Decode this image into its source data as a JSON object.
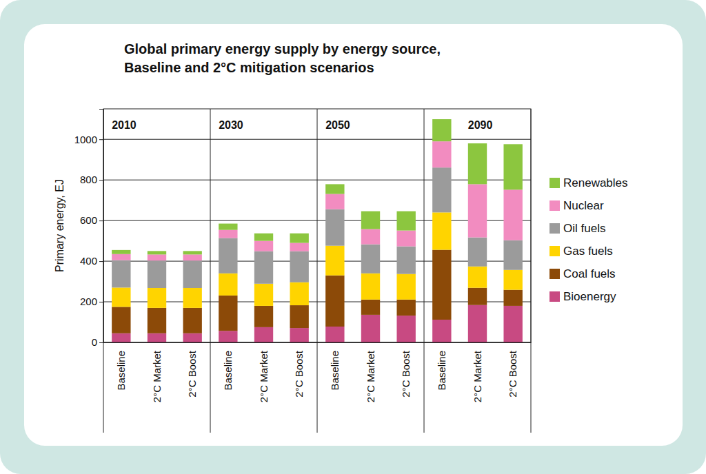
{
  "chart_data": {
    "type": "bar",
    "stacked": true,
    "title": [
      "Global primary energy supply by energy source,",
      "Baseline and 2°C mitigation scenarios"
    ],
    "y_label": "Primary energy, EJ",
    "group_labels": [
      "2010",
      "2030",
      "2050",
      "2090"
    ],
    "categories": [
      "Baseline",
      "2°C Market",
      "2°C Boost",
      "Baseline",
      "2°C Market",
      "2°C Boost",
      "Baseline",
      "2°C Market",
      "2°C Boost",
      "Baseline",
      "2°C Market",
      "2°C Boost"
    ],
    "series": [
      {
        "name": "Bioenergy",
        "color": "#c84a82",
        "values": [
          45,
          45,
          45,
          57,
          75,
          71,
          78,
          136,
          132,
          112,
          184,
          180
        ]
      },
      {
        "name": "Coal fuels",
        "color": "#8c4a08",
        "values": [
          130,
          125,
          125,
          174,
          105,
          112,
          252,
          75,
          79,
          344,
          85,
          79
        ]
      },
      {
        "name": "Gas fuels",
        "color": "#ffd400",
        "values": [
          95,
          98,
          98,
          109,
          109,
          113,
          146,
          129,
          126,
          184,
          105,
          98
        ]
      },
      {
        "name": "Oil fuels",
        "color": "#9b9b9b",
        "values": [
          135,
          135,
          135,
          174,
          160,
          153,
          180,
          143,
          136,
          221,
          143,
          146
        ]
      },
      {
        "name": "Nuclear",
        "color": "#f28cc0",
        "values": [
          30,
          30,
          30,
          40,
          51,
          41,
          75,
          75,
          78,
          129,
          262,
          249
        ]
      },
      {
        "name": "Renewables",
        "color": "#8cc63f",
        "values": [
          20,
          17,
          17,
          31,
          37,
          47,
          48,
          88,
          95,
          109,
          201,
          224
        ]
      }
    ],
    "ylim": [
      0,
      1150
    ],
    "yticks": [
      0,
      200,
      400,
      600,
      800,
      1000
    ],
    "grid": true,
    "legend": "right"
  }
}
